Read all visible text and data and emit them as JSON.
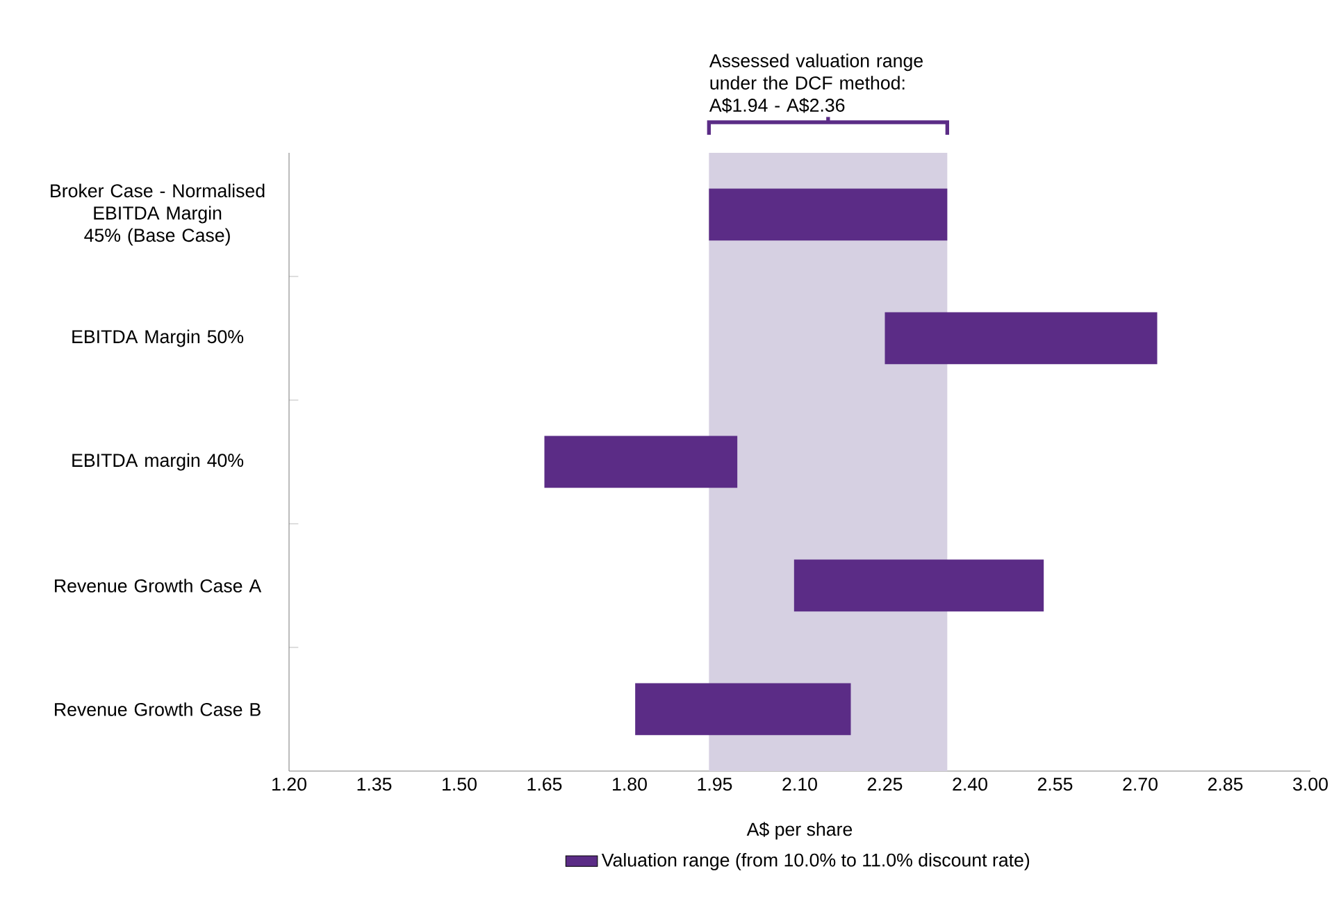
{
  "chart_data": {
    "type": "bar",
    "orientation": "horizontal",
    "categories": [
      "Broker Case - Normalised EBITDA Margin 45% (Base Case)",
      "EBITDA Margin 50%",
      "EBITDA margin 40%",
      "Revenue Growth Case A",
      "Revenue Growth Case B"
    ],
    "series": [
      {
        "name": "Valuation range (from 10.0% to 11.0% discount rate)",
        "color": "#5b2c86",
        "values": [
          0.42,
          0.48,
          0.34,
          0.44,
          0.38
        ],
        "base": [
          1.94,
          2.25,
          1.65,
          2.09,
          1.81
        ]
      }
    ],
    "xlabel": "A$ per share",
    "xlim": [
      1.2,
      3.0
    ],
    "xticks": [
      {
        "value": 1.2,
        "label": "1.20"
      },
      {
        "value": 1.35,
        "label": "1.35"
      },
      {
        "value": 1.5,
        "label": "1.50"
      },
      {
        "value": 1.65,
        "label": "1.65"
      },
      {
        "value": 1.8,
        "label": "1.80"
      },
      {
        "value": 1.95,
        "label": "1.95"
      },
      {
        "value": 2.1,
        "label": "2.10"
      },
      {
        "value": 2.25,
        "label": "2.25"
      },
      {
        "value": 2.4,
        "label": "2.40"
      },
      {
        "value": 2.55,
        "label": "2.55"
      },
      {
        "value": 2.7,
        "label": "2.70"
      },
      {
        "value": 2.85,
        "label": "2.85"
      },
      {
        "value": 3.0,
        "label": "3.00"
      }
    ],
    "bands": [
      {
        "axis": "x",
        "from": 1.94,
        "to": 2.36,
        "label": "Assessed valuation range under the DCF method: A$1.94 - A$2.36",
        "color": "#d6d0e2"
      }
    ],
    "legend": "bottom",
    "grid": false
  }
}
